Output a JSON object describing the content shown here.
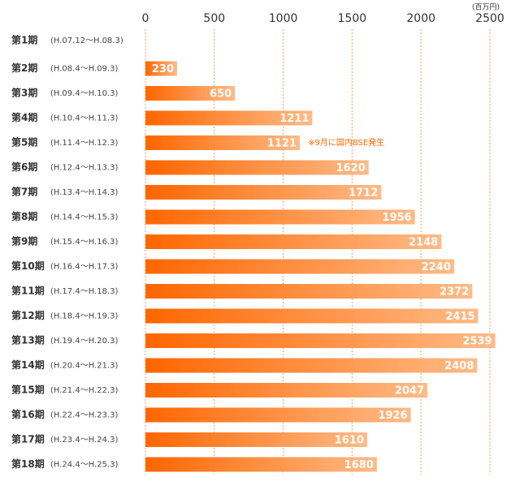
{
  "chart_data": {
    "type": "bar",
    "orientation": "horizontal",
    "unit_label": "(百万円)",
    "categories": [
      "第1期",
      "第2期",
      "第3期",
      "第4期",
      "第5期",
      "第6期",
      "第7期",
      "第8期",
      "第9期",
      "第10期",
      "第11期",
      "第12期",
      "第13期",
      "第14期",
      "第15期",
      "第16期",
      "第17期",
      "第18期"
    ],
    "periods": [
      "(H.07.12～H.08.3)",
      "(H.08.4～H.09.3)",
      "(H.09.4～H.10.3)",
      "(H.10.4～H.11.3)",
      "(H.11.4～H.12.3)",
      "(H.12.4～H.13.3)",
      "(H.13.4～H.14.3)",
      "(H.14.4～H.15.3)",
      "(H.15.4～H.16.3)",
      "(H.16.4～H.17.3)",
      "(H.17.4～H.18.3)",
      "(H.18.4～H.19.3)",
      "(H.19.4～H.20.3)",
      "(H.20.4～H.21.3)",
      "(H.21.4～H.22.3)",
      "(H.22.4～H.23.3)",
      "(H.23.4～H.24.3)",
      "(H.24.4～H.25.3)"
    ],
    "values": [
      null,
      230,
      650,
      1211,
      1121,
      1620,
      1712,
      1956,
      2148,
      2240,
      2372,
      2415,
      2539,
      2408,
      2047,
      1926,
      1610,
      1680
    ],
    "annotation": "※9月に国内BSE発生",
    "color": "#ff6600",
    "color_end": "#ffbb88",
    "xlim": [
      0,
      2500
    ],
    "xticks": [
      0,
      500,
      1000,
      1500,
      2000,
      2500
    ],
    "grid": true
  }
}
